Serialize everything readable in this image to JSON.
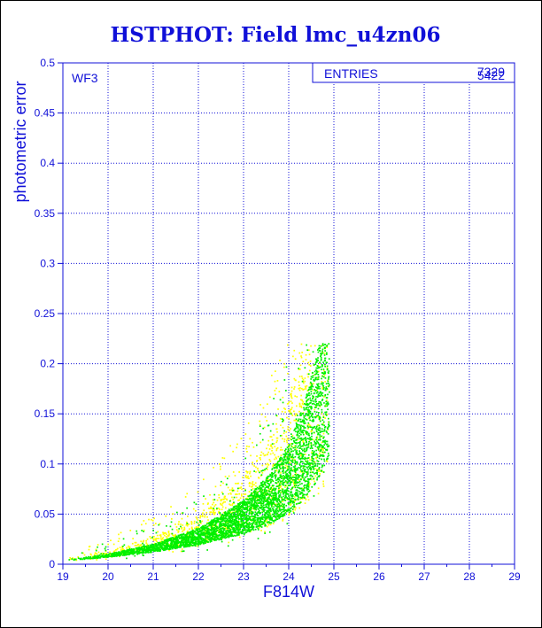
{
  "chart_data": {
    "type": "scatter",
    "title": "HSTPHOT: Field lmc_u4zn06",
    "xlabel": "F814W",
    "ylabel": "photometric error",
    "xlim": [
      19,
      29
    ],
    "ylim": [
      0,
      0.5
    ],
    "x_ticks": [
      "19",
      "20",
      "21",
      "22",
      "23",
      "24",
      "25",
      "26",
      "27",
      "28",
      "29"
    ],
    "y_ticks": [
      "0",
      "0.05",
      "0.1",
      "0.15",
      "0.2",
      "0.25",
      "0.3",
      "0.35",
      "0.4",
      "0.45",
      "0.5"
    ],
    "grid": true,
    "chip_label": "WF3",
    "stats": {
      "label": "ENTRIES",
      "values": [
        "7329",
        "5422"
      ]
    },
    "colors": {
      "axis": "#1010d8",
      "title": "#1010d8",
      "series_1": "#00f000",
      "series_2": "#ffff00"
    },
    "series": [
      {
        "color": "#00f000",
        "count": 5422,
        "trend": {
          "x": [
            19.1,
            20.0,
            21.0,
            22.0,
            23.0,
            23.5,
            24.0,
            24.3,
            24.6,
            24.9
          ],
          "y": [
            0.004,
            0.008,
            0.015,
            0.025,
            0.042,
            0.055,
            0.075,
            0.095,
            0.125,
            0.17
          ]
        }
      },
      {
        "color": "#ffff00",
        "count": 7329,
        "trend": {
          "x": [
            19.1,
            20.0,
            21.0,
            22.0,
            23.0,
            23.5,
            24.0,
            24.3,
            24.6,
            24.9
          ],
          "y": [
            0.005,
            0.01,
            0.018,
            0.03,
            0.05,
            0.065,
            0.088,
            0.11,
            0.14,
            0.18
          ]
        }
      }
    ]
  }
}
